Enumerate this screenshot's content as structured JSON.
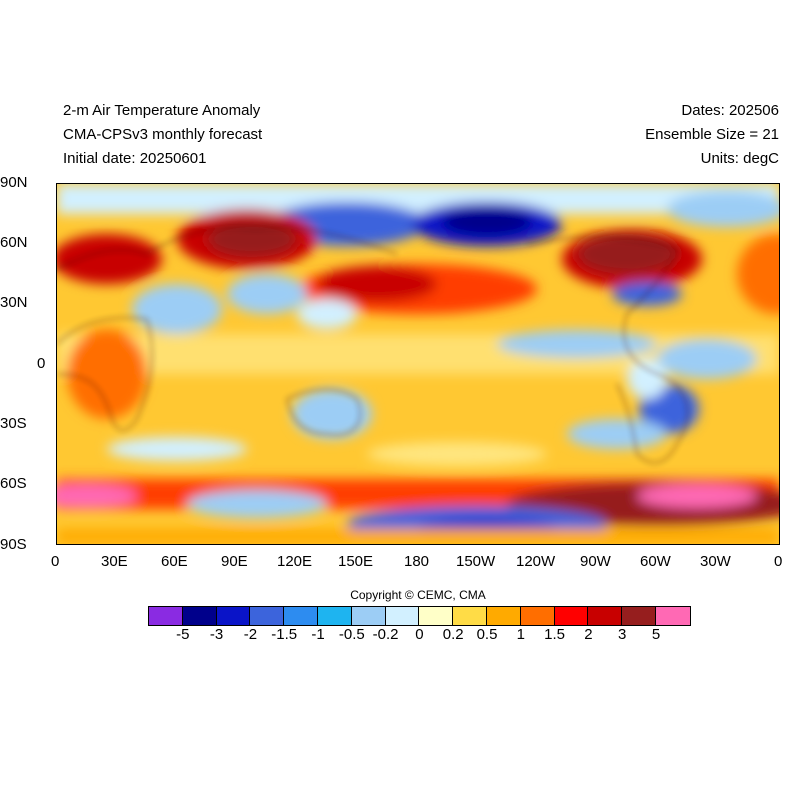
{
  "header": {
    "title": "2-m Air Temperature Anomaly",
    "subtitle": "CMA-CPSv3 monthly forecast",
    "initial_date": "Initial date: 20250601",
    "dates": "Dates: 202506",
    "ensemble": "Ensemble Size = 21",
    "units": "Units: degC"
  },
  "axes": {
    "lat_labels": [
      "90N",
      "60N",
      "30N",
      "0",
      "30S",
      "60S",
      "90S"
    ],
    "lon_labels": [
      "0",
      "30E",
      "60E",
      "90E",
      "120E",
      "150E",
      "180",
      "150W",
      "120W",
      "90W",
      "60W",
      "30W",
      "0"
    ]
  },
  "copyright": "Copyright © CEMC, CMA",
  "colorbar": {
    "colors": [
      "#8a2be2",
      "#00008b",
      "#0a14c8",
      "#3c64dc",
      "#2d8cf0",
      "#1eb4f0",
      "#9ccdf5",
      "#d2f0ff",
      "#ffffc8",
      "#ffdc46",
      "#ffaa00",
      "#ff6e00",
      "#ff0000",
      "#c80000",
      "#961e1e",
      "#ff69b4"
    ],
    "labels": [
      "-5",
      "-3",
      "-2",
      "-1.5",
      "-1",
      "-0.5",
      "-0.2",
      "0",
      "0.2",
      "0.5",
      "1",
      "1.5",
      "2",
      "3",
      "5"
    ]
  },
  "map_regions": [
    {
      "name": "arctic-cool",
      "color": "#d2f0ff"
    },
    {
      "name": "north-siberia-cold",
      "color": "#0a14c8"
    },
    {
      "name": "north-pacific-cold",
      "color": "#00008b"
    },
    {
      "name": "europe-warm",
      "color": "#961e1e"
    },
    {
      "name": "north-america-warm",
      "color": "#961e1e"
    },
    {
      "name": "southern-ocean-warm",
      "color": "#961e1e"
    },
    {
      "name": "antarctic-hot",
      "color": "#ff69b4"
    }
  ]
}
